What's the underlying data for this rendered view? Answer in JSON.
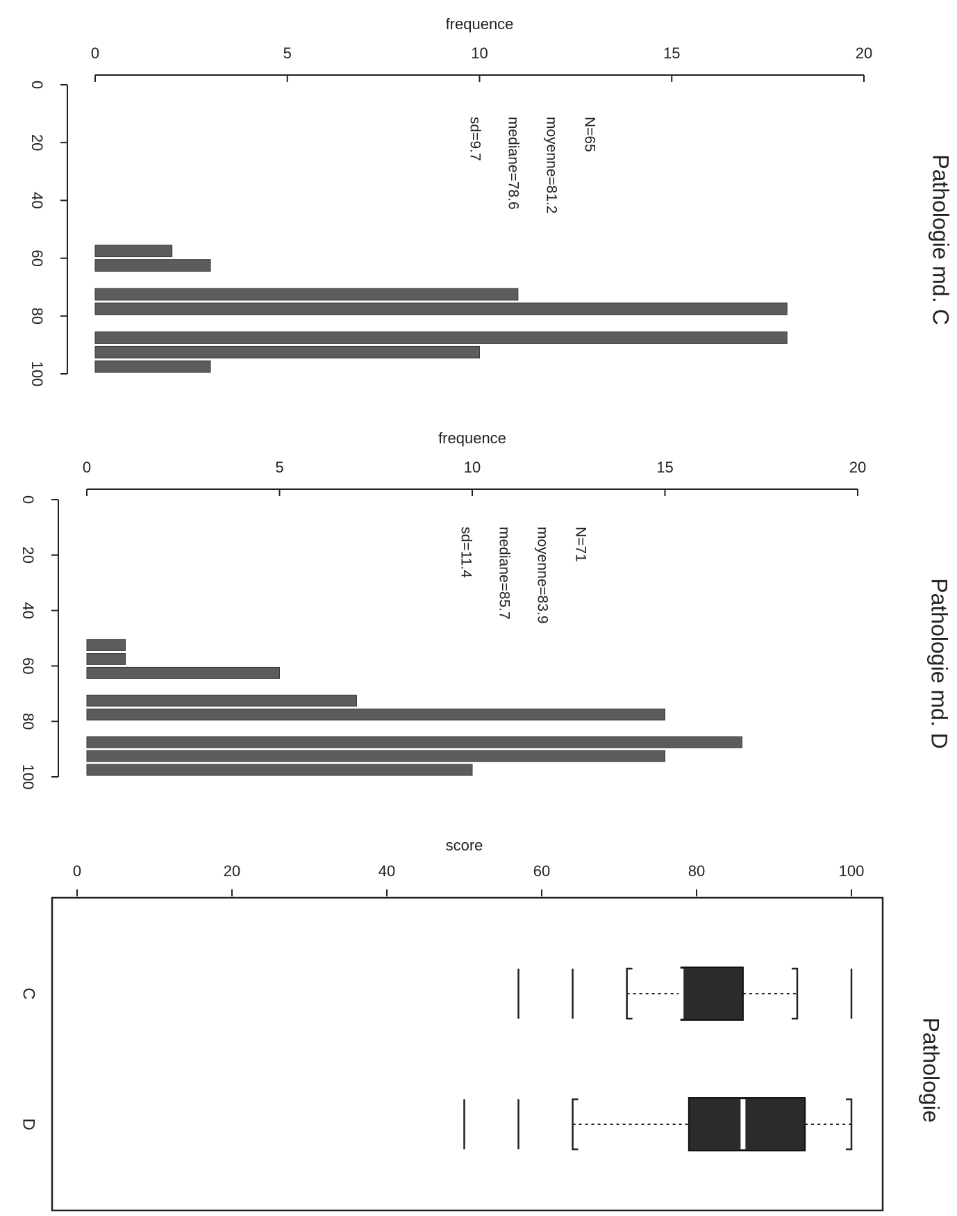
{
  "titles": {
    "panel_c": "Pathologie md. C",
    "panel_d": "Pathologie md. D",
    "boxplot": "Pathologie"
  },
  "labels": {
    "freq_axis": "frequence",
    "score_axis": "score"
  },
  "stats_c": {
    "n": "N=65",
    "mean": "moyenne=81.2",
    "median": "mediane=78.6",
    "sd": "sd=9.7"
  },
  "stats_d": {
    "n": "N=71",
    "mean": "moyenne=83.9",
    "median": "mediane=85.7",
    "sd": "sd=11.4"
  },
  "chart_data": [
    {
      "type": "bar",
      "title": "Pathologie md. C",
      "xlabel": "frequence",
      "ylabel": "",
      "orientation": "horizontal",
      "freq_lim": [
        0,
        20
      ],
      "freq_ticks": [
        0,
        5,
        10,
        15,
        20
      ],
      "score_lim": [
        0,
        100
      ],
      "score_ticks": [
        0,
        20,
        40,
        60,
        80,
        100
      ],
      "bins": [
        {
          "from": 55,
          "to": 60,
          "count": 2
        },
        {
          "from": 60,
          "to": 65,
          "count": 3
        },
        {
          "from": 70,
          "to": 75,
          "count": 11
        },
        {
          "from": 75,
          "to": 80,
          "count": 18
        },
        {
          "from": 85,
          "to": 90,
          "count": 18
        },
        {
          "from": 90,
          "to": 95,
          "count": 10
        },
        {
          "from": 95,
          "to": 100,
          "count": 3
        }
      ]
    },
    {
      "type": "bar",
      "title": "Pathologie md. D",
      "xlabel": "frequence",
      "ylabel": "",
      "orientation": "horizontal",
      "freq_lim": [
        0,
        20
      ],
      "freq_ticks": [
        0,
        5,
        10,
        15,
        20
      ],
      "score_lim": [
        0,
        100
      ],
      "score_ticks": [
        0,
        20,
        40,
        60,
        80,
        100
      ],
      "bins": [
        {
          "from": 50,
          "to": 55,
          "count": 1
        },
        {
          "from": 55,
          "to": 60,
          "count": 1
        },
        {
          "from": 60,
          "to": 65,
          "count": 5
        },
        {
          "from": 70,
          "to": 75,
          "count": 7
        },
        {
          "from": 75,
          "to": 80,
          "count": 15
        },
        {
          "from": 85,
          "to": 90,
          "count": 17
        },
        {
          "from": 90,
          "to": 95,
          "count": 15
        },
        {
          "from": 95,
          "to": 100,
          "count": 10
        }
      ]
    },
    {
      "type": "box",
      "title": "Pathologie",
      "xlabel": "score",
      "ylabel": "",
      "score_lim": [
        0,
        100
      ],
      "score_ticks": [
        0,
        20,
        40,
        60,
        80,
        100
      ],
      "groups": [
        {
          "name": "C",
          "whisker_low": 71,
          "q1": 78,
          "median": 78,
          "q3": 86,
          "whisker_high": 93,
          "outliers": [
            57,
            64,
            100
          ]
        },
        {
          "name": "D",
          "whisker_low": 64,
          "q1": 79,
          "median": 86,
          "q3": 94,
          "whisker_high": 100,
          "outliers": [
            50,
            57
          ]
        }
      ]
    }
  ]
}
